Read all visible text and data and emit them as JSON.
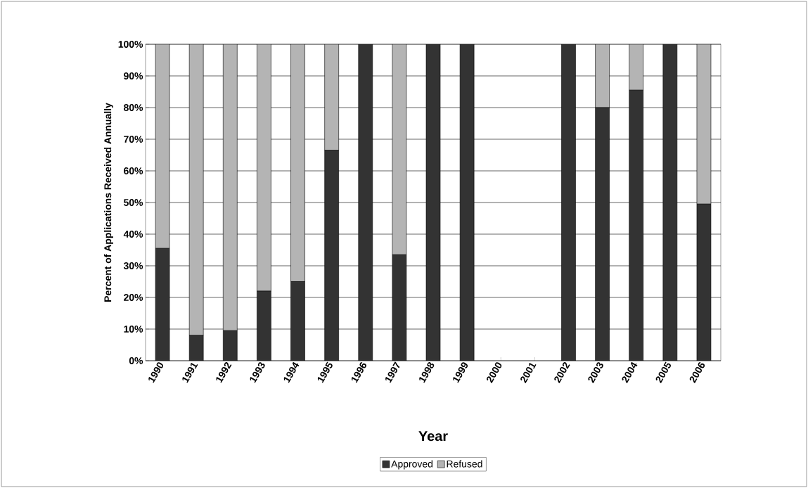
{
  "chart_data": {
    "type": "bar",
    "stacked": true,
    "xlabel": "Year",
    "ylabel": "Percent of Applications Received Annually",
    "categories": [
      "1990",
      "1991",
      "1992",
      "1993",
      "1994",
      "1995",
      "1996",
      "1997",
      "1998",
      "1999",
      "2000",
      "2001",
      "2002",
      "2003",
      "2004",
      "2005",
      "2006"
    ],
    "series": [
      {
        "name": "Approved",
        "color": "#333333",
        "values": [
          35.5,
          8,
          9.5,
          22,
          25,
          66.5,
          100,
          33.5,
          100,
          100,
          null,
          null,
          100,
          80,
          85.5,
          100,
          49.5
        ]
      },
      {
        "name": "Refused",
        "color": "#b4b4b4",
        "values": [
          64.5,
          92,
          90.5,
          78,
          75,
          33.5,
          0,
          66.5,
          0,
          0,
          null,
          null,
          0,
          20,
          14.5,
          0,
          50.5
        ]
      }
    ],
    "ylim": [
      0,
      100
    ],
    "yticks": [
      {
        "value": 0,
        "label": "0%"
      },
      {
        "value": 10,
        "label": "10%"
      },
      {
        "value": 20,
        "label": "20%"
      },
      {
        "value": 30,
        "label": "30%"
      },
      {
        "value": 40,
        "label": "40%"
      },
      {
        "value": 50,
        "label": "50%"
      },
      {
        "value": 60,
        "label": "60%"
      },
      {
        "value": 70,
        "label": "70%"
      },
      {
        "value": 80,
        "label": "80%"
      },
      {
        "value": 90,
        "label": "90%"
      },
      {
        "value": 100,
        "label": "100%"
      }
    ],
    "grid": "y",
    "legend": "bottom"
  }
}
